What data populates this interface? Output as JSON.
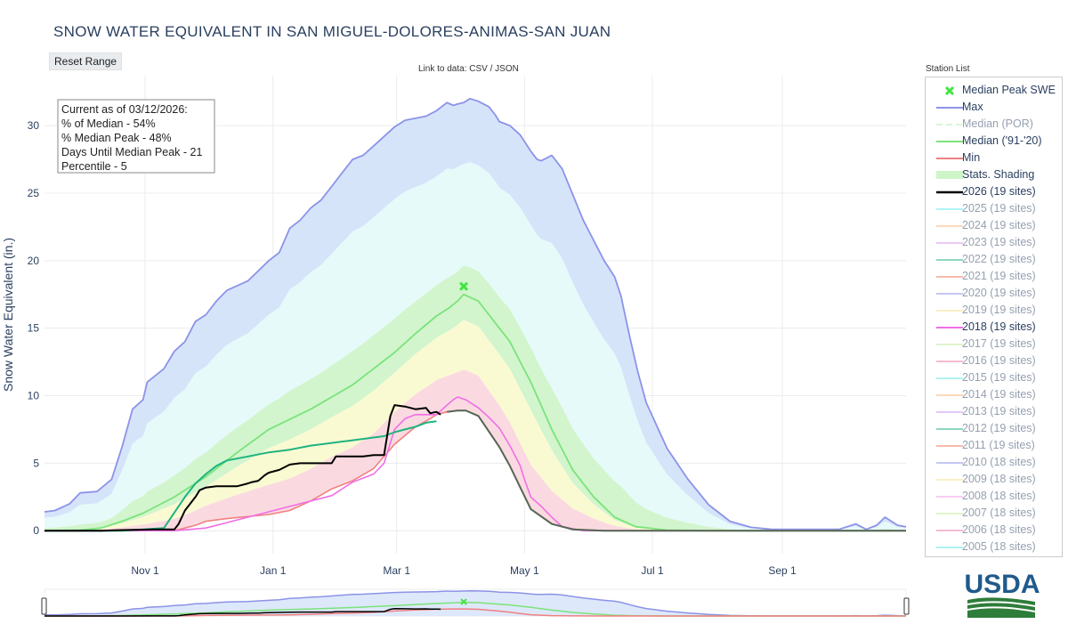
{
  "title": "SNOW WATER EQUIVALENT IN SAN MIGUEL-DOLORES-ANIMAS-SAN JUAN",
  "reset_label": "Reset Range",
  "link_prefix": "Link to data: ",
  "link_csv": "CSV",
  "link_sep": " / ",
  "link_json": "JSON",
  "station_list_label": "Station List",
  "info_box": [
    "Current as of 03/12/2026:",
    "% of Median - 54%",
    "% Median Peak - 48%",
    "Days Until Median Peak - 21",
    "Percentile - 5"
  ],
  "logo_text": "USDA",
  "colors": {
    "max": "#8c93e8",
    "min": "#f08080",
    "median": "#7be37b",
    "median_peak": "#3ee63e",
    "current": "#000000",
    "y2018": "#f06ee6",
    "y2012": "#1fb380",
    "blue_fill": "#d6e4fa",
    "cyan_fill": "#e6fafa",
    "green_fill": "#d2f5cd",
    "yellow_fill": "#fafad2",
    "pink_fill": "#fadae0"
  },
  "legend": [
    {
      "label": "Median Peak SWE",
      "kind": "marker",
      "color": "#3ee63e",
      "active": true
    },
    {
      "label": "Max",
      "kind": "line",
      "color": "#8c93e8",
      "active": true
    },
    {
      "label": "Median (POR)",
      "kind": "dash",
      "color": "#b4f0b4",
      "active": false
    },
    {
      "label": "Median ('91-'20)",
      "kind": "line",
      "color": "#7be37b",
      "active": true
    },
    {
      "label": "Min",
      "kind": "line",
      "color": "#f08080",
      "active": true
    },
    {
      "label": "Stats. Shading",
      "kind": "fill",
      "color": "#cdf5c8",
      "active": true
    },
    {
      "label": "2026 (19 sites)",
      "kind": "line",
      "color": "#000000",
      "active": true
    },
    {
      "label": "2025 (19 sites)",
      "kind": "line",
      "color": "#62e8f0",
      "active": false
    },
    {
      "label": "2024 (19 sites)",
      "kind": "line",
      "color": "#f7b27a",
      "active": false
    },
    {
      "label": "2023 (19 sites)",
      "kind": "line",
      "color": "#d695ee",
      "active": false
    },
    {
      "label": "2022 (19 sites)",
      "kind": "line",
      "color": "#1fb380",
      "active": false
    },
    {
      "label": "2021 (19 sites)",
      "kind": "line",
      "color": "#f0785a",
      "active": false
    },
    {
      "label": "2020 (19 sites)",
      "kind": "line",
      "color": "#8c93e8",
      "active": false
    },
    {
      "label": "2019 (19 sites)",
      "kind": "line",
      "color": "#f5e08a",
      "active": false
    },
    {
      "label": "2018 (19 sites)",
      "kind": "line",
      "color": "#f06ee6",
      "active": true
    },
    {
      "label": "2017 (19 sites)",
      "kind": "line",
      "color": "#c3ea9a",
      "active": false
    },
    {
      "label": "2016 (19 sites)",
      "kind": "line",
      "color": "#f07aa8",
      "active": false
    },
    {
      "label": "2015 (19 sites)",
      "kind": "line",
      "color": "#62e8e0",
      "active": false
    },
    {
      "label": "2014 (19 sites)",
      "kind": "line",
      "color": "#f7b27a",
      "active": false
    },
    {
      "label": "2013 (19 sites)",
      "kind": "line",
      "color": "#c695ee",
      "active": false
    },
    {
      "label": "2012 (19 sites)",
      "kind": "line",
      "color": "#1fb380",
      "active": false
    },
    {
      "label": "2011 (19 sites)",
      "kind": "line",
      "color": "#f0785a",
      "active": false
    },
    {
      "label": "2010 (18 sites)",
      "kind": "line",
      "color": "#8c93e8",
      "active": false
    },
    {
      "label": "2009 (18 sites)",
      "kind": "line",
      "color": "#f5e08a",
      "active": false
    },
    {
      "label": "2008 (18 sites)",
      "kind": "line",
      "color": "#f29ee6",
      "active": false
    },
    {
      "label": "2007 (18 sites)",
      "kind": "line",
      "color": "#c3ea9a",
      "active": false
    },
    {
      "label": "2006 (18 sites)",
      "kind": "line",
      "color": "#f07aa8",
      "active": false
    },
    {
      "label": "2005 (18 sites)",
      "kind": "line",
      "color": "#62e8e0",
      "active": false
    }
  ],
  "chart_data": {
    "type": "line",
    "title": "SNOW WATER EQUIVALENT IN SAN MIGUEL-DOLORES-ANIMAS-SAN JUAN",
    "ylabel": "Snow Water Equivalent (in.)",
    "ylim": [
      -1.7,
      33.7
    ],
    "yticks": [
      0,
      5,
      10,
      15,
      20,
      25,
      30
    ],
    "x_range_days": [
      -17,
      394
    ],
    "x_ticks": [
      {
        "label": "Nov 1",
        "day": 31
      },
      {
        "label": "Jan 1",
        "day": 92
      },
      {
        "label": "Mar 1",
        "day": 151
      },
      {
        "label": "May 1",
        "day": 212
      },
      {
        "label": "Jul 1",
        "day": 273
      },
      {
        "label": "Sep 1",
        "day": 335
      }
    ],
    "grid": true,
    "legend_position": "right",
    "median_peak": {
      "day": 183,
      "value": 18.1
    },
    "series": [
      {
        "name": "Max",
        "color": "#8c93e8",
        "x": [
          -17,
          -12,
          -5,
          0,
          8,
          15,
          20,
          25,
          30,
          32,
          40,
          45,
          50,
          55,
          60,
          65,
          70,
          80,
          90,
          95,
          100,
          105,
          110,
          115,
          120,
          125,
          130,
          135,
          140,
          145,
          150,
          155,
          165,
          170,
          175,
          178,
          180,
          183,
          186,
          190,
          195,
          198,
          200,
          205,
          210,
          215,
          218,
          220,
          225,
          230,
          240,
          250,
          255,
          258,
          262,
          266,
          270,
          280,
          290,
          300,
          310,
          320,
          330,
          340,
          345,
          350,
          358,
          362,
          370,
          375,
          380,
          384,
          390,
          394
        ],
        "y": [
          1.4,
          1.5,
          2.0,
          2.8,
          2.9,
          3.8,
          6.2,
          9.0,
          9.7,
          11.0,
          12.0,
          13.3,
          14.0,
          15.5,
          16.0,
          17.0,
          17.8,
          18.5,
          20.0,
          20.6,
          22.4,
          23.0,
          23.9,
          24.5,
          25.5,
          26.5,
          27.5,
          27.8,
          28.5,
          29.2,
          29.9,
          30.4,
          30.7,
          31.1,
          31.7,
          31.5,
          31.6,
          31.7,
          32.0,
          31.8,
          31.4,
          30.8,
          30.3,
          30.0,
          29.3,
          28.1,
          27.5,
          27.4,
          27.8,
          26.8,
          23.0,
          20.0,
          18.8,
          17.4,
          14.5,
          11.8,
          9.5,
          6.1,
          3.8,
          1.9,
          0.7,
          0.25,
          0.1,
          0.1,
          0.1,
          0.1,
          0.1,
          0.1,
          0.5,
          0.1,
          0.4,
          1.0,
          0.4,
          0.3
        ]
      },
      {
        "name": "Median ('91-'20)",
        "color": "#7be37b",
        "x": [
          -17,
          0,
          10,
          20,
          30,
          45,
          60,
          75,
          90,
          110,
          130,
          140,
          150,
          160,
          170,
          176,
          180,
          183,
          190,
          195,
          200,
          205,
          210,
          215,
          225,
          235,
          245,
          255,
          265,
          280,
          300,
          394
        ],
        "y": [
          0,
          0.05,
          0.2,
          0.7,
          1.3,
          2.5,
          4.0,
          5.8,
          7.5,
          9.0,
          10.8,
          12.0,
          13.2,
          14.6,
          15.9,
          16.5,
          17.0,
          17.5,
          17.0,
          16.0,
          15.0,
          14.0,
          12.5,
          11.0,
          7.5,
          4.5,
          2.5,
          1.0,
          0.3,
          0.05,
          0,
          0
        ]
      },
      {
        "name": "Min",
        "color": "#f08080",
        "x": [
          -17,
          0,
          20,
          45,
          55,
          60,
          70,
          90,
          100,
          110,
          120,
          130,
          140,
          150,
          160,
          167,
          170,
          175,
          180,
          184,
          190,
          200,
          205,
          210,
          215,
          225,
          235,
          250,
          394
        ],
        "y": [
          0,
          0,
          0,
          0,
          0.4,
          0.7,
          0.9,
          1.2,
          1.5,
          2.2,
          3.1,
          3.7,
          4.6,
          6.4,
          7.7,
          8.3,
          8.6,
          8.8,
          8.9,
          8.9,
          8.5,
          6.2,
          4.8,
          3.2,
          1.6,
          0.5,
          0.1,
          0,
          0
        ]
      },
      {
        "name": "2018 (19 sites)",
        "color": "#f06ee6",
        "x": [
          -17,
          20,
          45,
          60,
          80,
          100,
          120,
          130,
          140,
          145,
          150,
          155,
          160,
          165,
          170,
          175,
          178,
          180,
          184,
          190,
          195,
          200,
          205,
          210,
          212,
          215,
          220,
          225,
          230,
          240,
          394
        ],
        "y": [
          0,
          0,
          0,
          0.2,
          1.0,
          1.8,
          2.6,
          3.6,
          4.2,
          5.0,
          7.5,
          8.3,
          8.6,
          8.6,
          8.6,
          9.3,
          9.7,
          9.9,
          9.7,
          9.1,
          8.4,
          7.6,
          6.3,
          4.8,
          3.8,
          2.5,
          1.8,
          1.0,
          0.3,
          0,
          0
        ]
      },
      {
        "name": "2012 (19 sites)",
        "color": "#1fb380",
        "x": [
          -17,
          20,
          30,
          40,
          50,
          55,
          60,
          65,
          70,
          80,
          90,
          100,
          110,
          120,
          130,
          140,
          145,
          150,
          155,
          160,
          165,
          170
        ],
        "y": [
          0,
          0,
          0.1,
          0.2,
          2.5,
          3.5,
          4.2,
          4.8,
          5.2,
          5.5,
          5.8,
          6.0,
          6.3,
          6.5,
          6.7,
          6.9,
          7.0,
          7.3,
          7.5,
          7.7,
          8.0,
          8.1
        ]
      },
      {
        "name": "2026 (19 sites)",
        "color": "#000000",
        "x": [
          -17,
          10,
          20,
          35,
          45,
          47,
          50,
          55,
          57,
          60,
          65,
          70,
          75,
          80,
          82,
          85,
          88,
          90,
          95,
          100,
          105,
          115,
          120,
          122,
          125,
          130,
          135,
          140,
          145,
          148,
          150,
          155,
          160,
          165,
          167,
          170,
          172
        ],
        "y": [
          0,
          0,
          0.05,
          0.1,
          0.1,
          0.5,
          1.5,
          2.5,
          3.0,
          3.2,
          3.3,
          3.3,
          3.3,
          3.5,
          3.6,
          3.7,
          4.1,
          4.3,
          4.5,
          4.9,
          5.0,
          5.0,
          5.0,
          5.5,
          5.5,
          5.5,
          5.5,
          5.6,
          5.6,
          8.5,
          9.3,
          9.2,
          9.0,
          9.1,
          8.7,
          8.8,
          8.6
        ]
      }
    ],
    "fills": [
      {
        "name": "max-to-75th",
        "color": "#d6e4fa"
      },
      {
        "name": "75th-to-90th",
        "color": "#e6fafa"
      },
      {
        "name": "median-band",
        "color": "#d2f5cd"
      },
      {
        "name": "below-median",
        "color": "#fafad2"
      },
      {
        "name": "near-min",
        "color": "#fadae0"
      }
    ]
  }
}
